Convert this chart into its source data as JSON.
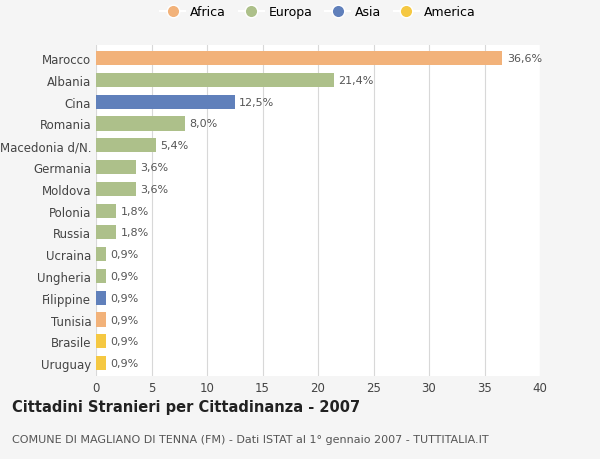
{
  "countries": [
    "Marocco",
    "Albania",
    "Cina",
    "Romania",
    "Macedonia d/N.",
    "Germania",
    "Moldova",
    "Polonia",
    "Russia",
    "Ucraina",
    "Ungheria",
    "Filippine",
    "Tunisia",
    "Brasile",
    "Uruguay"
  ],
  "values": [
    36.6,
    21.4,
    12.5,
    8.0,
    5.4,
    3.6,
    3.6,
    1.8,
    1.8,
    0.9,
    0.9,
    0.9,
    0.9,
    0.9,
    0.9
  ],
  "labels": [
    "36,6%",
    "21,4%",
    "12,5%",
    "8,0%",
    "5,4%",
    "3,6%",
    "3,6%",
    "1,8%",
    "1,8%",
    "0,9%",
    "0,9%",
    "0,9%",
    "0,9%",
    "0,9%",
    "0,9%"
  ],
  "colors": [
    "#f2b27a",
    "#adc08a",
    "#6080bb",
    "#adc08a",
    "#adc08a",
    "#adc08a",
    "#adc08a",
    "#adc08a",
    "#adc08a",
    "#adc08a",
    "#adc08a",
    "#6080bb",
    "#f2b27a",
    "#f5c842",
    "#f5c842"
  ],
  "legend_labels": [
    "Africa",
    "Europa",
    "Asia",
    "America"
  ],
  "legend_colors": [
    "#f2b27a",
    "#adc08a",
    "#6080bb",
    "#f5c842"
  ],
  "title": "Cittadini Stranieri per Cittadinanza - 2007",
  "subtitle": "COMUNE DI MAGLIANO DI TENNA (FM) - Dati ISTAT al 1° gennaio 2007 - TUTTITALIA.IT",
  "xlim": [
    0,
    40
  ],
  "xticks": [
    0,
    5,
    10,
    15,
    20,
    25,
    30,
    35,
    40
  ],
  "bg_color": "#f5f5f5",
  "plot_bg_color": "#ffffff",
  "grid_color": "#d8d8d8",
  "bar_height": 0.65,
  "title_fontsize": 10.5,
  "subtitle_fontsize": 8,
  "tick_fontsize": 8.5,
  "label_fontsize": 8
}
